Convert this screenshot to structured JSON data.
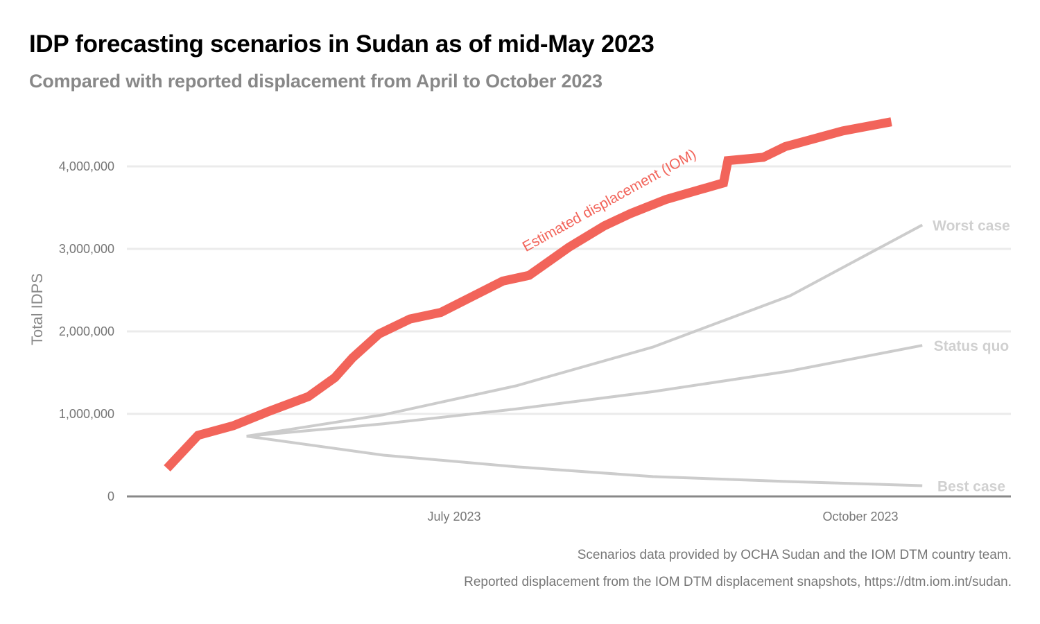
{
  "title": "IDP forecasting scenarios in Sudan as of mid-May 2023",
  "subtitle": "Compared with reported displacement from April to October 2023",
  "captions": [
    "Scenarios data provided by OCHA Sudan and the IOM DTM country team.",
    "Reported displacement from the IOM DTM displacement snapshots, https://dtm.iom.int/sudan."
  ],
  "chart_data": {
    "type": "line",
    "ylabel": "Total IDPS",
    "ylim": [
      0,
      4600000
    ],
    "xlim": [
      "2023-04-18",
      "2023-10-25"
    ],
    "yticks": [
      0,
      1000000,
      2000000,
      3000000,
      4000000
    ],
    "ytick_labels": [
      "0",
      "1,000,000",
      "2,000,000",
      "3,000,000",
      "4,000,000"
    ],
    "xticks": [
      "2023-07-01",
      "2023-10-01"
    ],
    "xtick_labels": [
      "July 2023",
      "October 2023"
    ],
    "grid": "horizontal",
    "colors": {
      "reported": "#f2645a",
      "scenario": "#cccccc",
      "scenario_label": "#d0d0d0",
      "grid": "#ebebeb",
      "axis": "#888888"
    },
    "series": [
      {
        "name": "Estimated displacement (IOM)",
        "role": "reported",
        "x": [
          "2023-04-27",
          "2023-05-04",
          "2023-05-12",
          "2023-05-20",
          "2023-05-29",
          "2023-06-04",
          "2023-06-08",
          "2023-06-14",
          "2023-06-21",
          "2023-06-28",
          "2023-07-05",
          "2023-07-12",
          "2023-07-18",
          "2023-07-27",
          "2023-08-04",
          "2023-08-10",
          "2023-08-18",
          "2023-08-31",
          "2023-09-01",
          "2023-09-09",
          "2023-09-14",
          "2023-09-27",
          "2023-10-08"
        ],
        "y": [
          340000,
          740000,
          857000,
          1030000,
          1210000,
          1440000,
          1680000,
          1970000,
          2150000,
          2230000,
          2420000,
          2610000,
          2680000,
          3020000,
          3280000,
          3430000,
          3600000,
          3800000,
          4070000,
          4110000,
          4240000,
          4430000,
          4540000
        ]
      },
      {
        "name": "Worst case",
        "role": "scenario",
        "x": [
          "2023-05-15",
          "2023-06-15",
          "2023-07-15",
          "2023-08-15",
          "2023-09-15",
          "2023-10-15"
        ],
        "y": [
          730000,
          990000,
          1340000,
          1810000,
          2430000,
          3290000
        ]
      },
      {
        "name": "Status quo",
        "role": "scenario",
        "x": [
          "2023-05-15",
          "2023-06-15",
          "2023-07-15",
          "2023-08-15",
          "2023-09-15",
          "2023-10-15"
        ],
        "y": [
          730000,
          880000,
          1060000,
          1270000,
          1520000,
          1830000
        ]
      },
      {
        "name": "Best case",
        "role": "scenario",
        "x": [
          "2023-05-15",
          "2023-06-15",
          "2023-07-15",
          "2023-08-15",
          "2023-09-15",
          "2023-10-15"
        ],
        "y": [
          730000,
          500000,
          360000,
          240000,
          180000,
          130000
        ]
      }
    ]
  }
}
